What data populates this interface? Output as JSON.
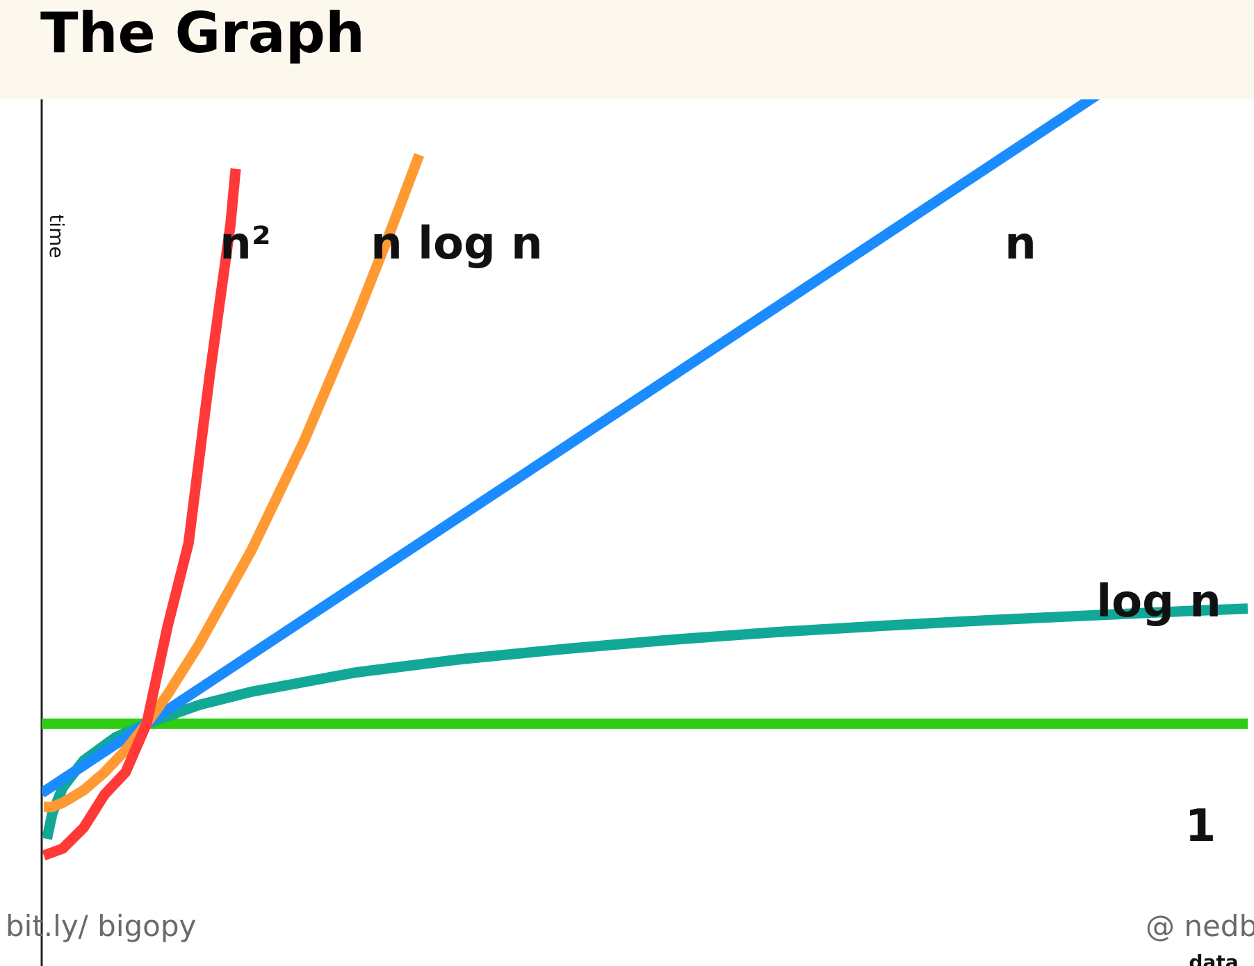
{
  "page": {
    "title": "The Graph",
    "footer_left": "bit.ly/ bigopy",
    "footer_right": "@ nedb"
  },
  "chart_data": {
    "type": "line",
    "title": "The Graph",
    "xlabel": "data",
    "ylabel": "time",
    "grid": false,
    "legend": "inline labels",
    "xlim": [
      0,
      11.5
    ],
    "ylim": [
      -1,
      10
    ],
    "series": [
      {
        "name": "1",
        "color": "#2fcc14",
        "label_color": "#111111",
        "x": [
          0,
          11.5
        ],
        "y": [
          1,
          1
        ]
      },
      {
        "name": "log n",
        "color": "#12a898",
        "label_color": "#111111",
        "x": [
          0.05,
          0.1,
          0.2,
          0.4,
          0.7,
          1,
          1.5,
          2,
          3,
          4,
          5,
          6,
          7,
          8,
          9,
          10,
          11,
          11.5
        ],
        "y": [
          -0.66,
          -0.3,
          0.08,
          0.47,
          0.8,
          1.0,
          1.27,
          1.46,
          1.74,
          1.93,
          2.08,
          2.21,
          2.32,
          2.41,
          2.49,
          2.56,
          2.63,
          2.66
        ]
      },
      {
        "name": "n",
        "color": "#1a8cff",
        "label_color": "#111111",
        "x": [
          0,
          10.4
        ],
        "y": [
          0,
          10.4
        ]
      },
      {
        "name": "n log n",
        "color": "#ff9a33",
        "label_color": "#111111",
        "x": [
          0.02,
          0.1,
          0.2,
          0.4,
          0.6,
          0.8,
          1,
          1.2,
          1.5,
          2,
          2.5,
          3,
          3.3,
          3.6
        ],
        "y": [
          -0.2,
          -0.2,
          -0.14,
          0.04,
          0.3,
          0.62,
          1.0,
          1.42,
          2.14,
          3.5,
          5.07,
          6.85,
          8.0,
          9.2
        ]
      },
      {
        "name": "n²",
        "color": "#ff3838",
        "label_color": "#111111",
        "x": [
          0.02,
          0.2,
          0.4,
          0.6,
          0.8,
          1,
          1.2,
          1.4,
          1.6,
          1.8,
          1.85
        ],
        "y": [
          -0.9,
          -0.8,
          -0.5,
          -0.02,
          0.3,
          1.0,
          2.4,
          3.6,
          6.0,
          8.2,
          9.0
        ]
      }
    ]
  }
}
